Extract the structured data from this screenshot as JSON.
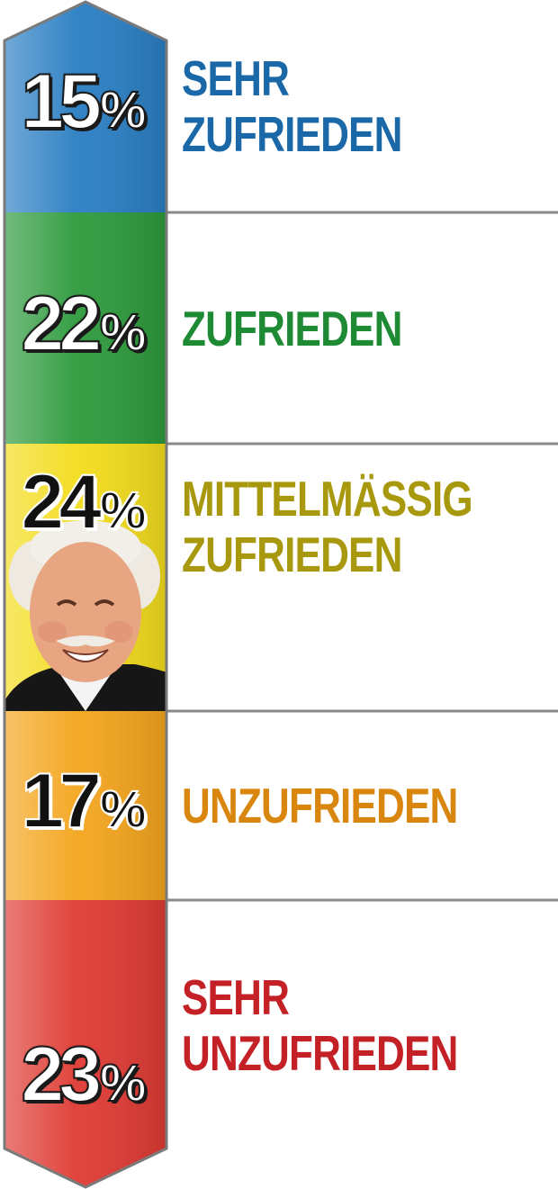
{
  "chart_data": {
    "type": "bar",
    "orientation": "vertical stacked segments",
    "categories": [
      "SEHR ZUFRIEDEN",
      "ZUFRIEDEN",
      "MITTELMÄSSIG ZUFRIEDEN",
      "UNZUFRIEDEN",
      "SEHR UNZUFRIEDEN"
    ],
    "segments": [
      {
        "value": 15,
        "pct_text": "15",
        "label_lines": [
          "SEHR",
          "ZUFRIEDEN"
        ],
        "color": "#2a7ec3",
        "text_color": "#1a68a8",
        "pct_style": "light"
      },
      {
        "value": 22,
        "pct_text": "22",
        "label_lines": [
          "ZUFRIEDEN"
        ],
        "color": "#2d9a3c",
        "text_color": "#1f8a34",
        "pct_style": "light"
      },
      {
        "value": 24,
        "pct_text": "24",
        "label_lines": [
          "MITTELMÄSSIG",
          "ZUFRIEDEN"
        ],
        "color": "#f3dc1c",
        "text_color": "#a8980e",
        "pct_style": "dark"
      },
      {
        "value": 17,
        "pct_text": "17",
        "label_lines": [
          "UNZUFRIEDEN"
        ],
        "color": "#f4a51d",
        "text_color": "#d9860f",
        "pct_style": "dark"
      },
      {
        "value": 23,
        "pct_text": "23",
        "label_lines": [
          "SEHR",
          "UNZUFRIEDEN"
        ],
        "color": "#df3a33",
        "text_color": "#c42127",
        "pct_style": "light"
      }
    ],
    "percent_sign": "%",
    "title": "",
    "xlabel": "",
    "ylabel": ""
  }
}
